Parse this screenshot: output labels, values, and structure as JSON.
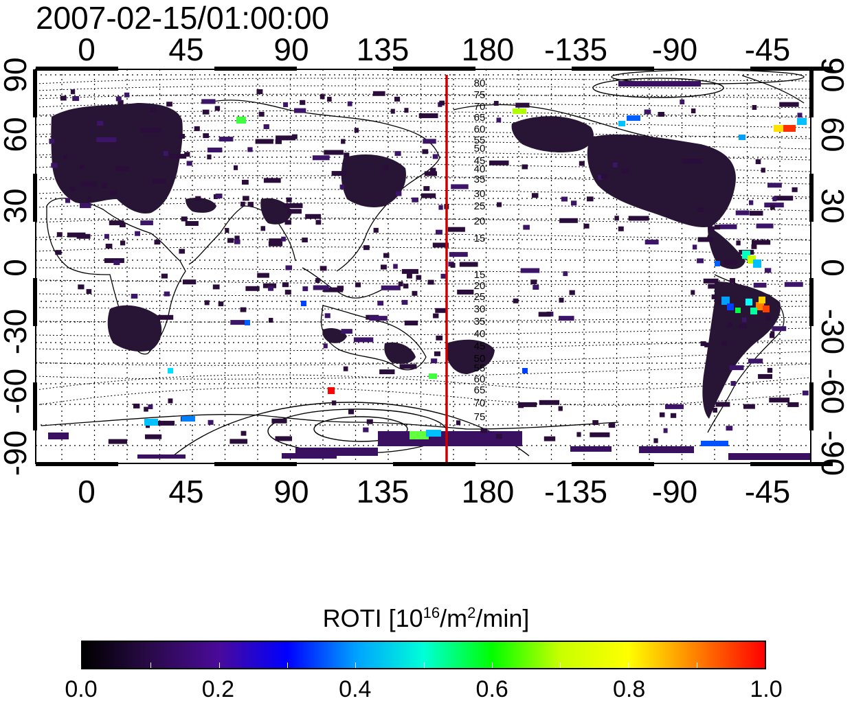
{
  "title": "2007-02-15/01:00:00",
  "map": {
    "lon_ticks": [
      "0",
      "45",
      "90",
      "135",
      "180",
      "-135",
      "-90",
      "-45"
    ],
    "lat_ticks_left": [
      "90",
      "60",
      "30",
      "0",
      "-30",
      "-60",
      "-90"
    ],
    "lat_ticks_right": [
      "90",
      "60",
      "30",
      "0",
      "-30",
      "-60",
      "-90"
    ],
    "terminator_color": "#cc0000",
    "magnetic_contour_labels_north": [
      "80",
      "75",
      "70",
      "65",
      "60",
      "55",
      "50",
      "45",
      "40",
      "35",
      "30",
      "25",
      "20",
      "15"
    ],
    "magnetic_contour_labels_south": [
      "15",
      "20",
      "25",
      "30",
      "35",
      "40",
      "45",
      "50",
      "55",
      "60",
      "65",
      "70",
      "75"
    ]
  },
  "colorbar": {
    "label_prefix": "ROTI  [10",
    "label_sup1": "16",
    "label_mid": "/m",
    "label_sup2": "2",
    "label_suffix": "/min]",
    "tick_labels": [
      "0.0",
      "0.2",
      "0.4",
      "0.6",
      "0.8",
      "1.0"
    ],
    "colors": [
      "#000000",
      "#2a0a4a",
      "#4a0a9a",
      "#0000ff",
      "#00a0ff",
      "#00ffd8",
      "#00ff00",
      "#c8ff00",
      "#ffff00",
      "#ff8000",
      "#ff0000"
    ]
  }
}
